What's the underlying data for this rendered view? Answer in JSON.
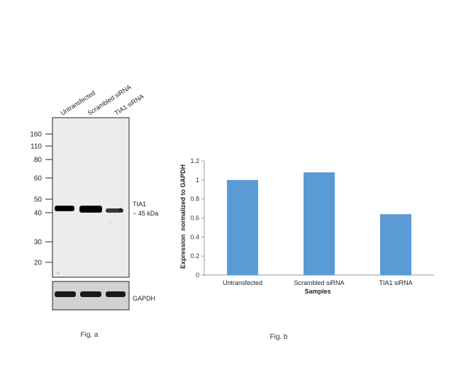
{
  "figure_a": {
    "caption": "Fig. a",
    "lanes": [
      "Untransfected",
      "Scrambled siRNA",
      "TIA1 siRNA"
    ],
    "markers": [
      "160",
      "110",
      "80",
      "60",
      "50",
      "40",
      "30",
      "20"
    ],
    "band_label_line1": "TIA1",
    "band_label_line2": "~ 45 kDa",
    "loading_control_label": "GAPDH"
  },
  "figure_b": {
    "caption": "Fig. b"
  },
  "chart_data": {
    "type": "bar",
    "categories": [
      "Untransfected",
      "Scrambled siRNA",
      "TIA1 siRNA"
    ],
    "values": [
      1.0,
      1.08,
      0.64
    ],
    "title": "",
    "xlabel": "Samples",
    "ylabel": "Expression  normalized to GAPDH",
    "ylim": [
      0,
      1.2
    ],
    "yticks": [
      "0",
      "0.2",
      "0.4",
      "0.6",
      "0.8",
      "1",
      "1.2"
    ],
    "bar_color": "#5b9bd5",
    "grid": false,
    "legend": "none"
  }
}
